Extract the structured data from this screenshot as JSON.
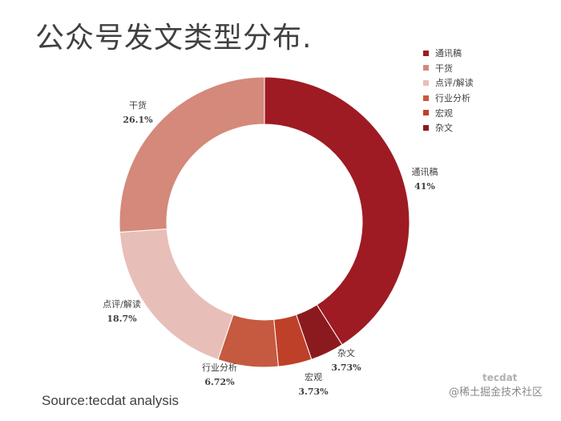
{
  "title": "公众号发文类型分布.",
  "source": "Source:tecdat analysis",
  "watermark": {
    "logo": "tecdat",
    "text": "@稀土掘金技术社区"
  },
  "colors": {
    "通讯稿": "#9e1b23",
    "干货": "#d4897a",
    "点评/解读": "#e8bfb8",
    "行业分析": "#c55a40",
    "宏观": "#bf4028",
    "杂文": "#8b1a1e"
  },
  "chart_data": {
    "type": "pie",
    "donut": true,
    "title": "公众号发文类型分布.",
    "legend_position": "right",
    "slices": [
      {
        "name": "通讯稿",
        "value": 41,
        "label": "41%"
      },
      {
        "name": "杂文",
        "value": 3.73,
        "label": "3.73%"
      },
      {
        "name": "宏观",
        "value": 3.73,
        "label": "3.73%"
      },
      {
        "name": "行业分析",
        "value": 6.72,
        "label": "6.72%"
      },
      {
        "name": "点评/解读",
        "value": 18.7,
        "label": "18.7%"
      },
      {
        "name": "干货",
        "value": 26.1,
        "label": "26.1%"
      }
    ],
    "legend": [
      "通讯稿",
      "干货",
      "点评/解读",
      "行业分析",
      "宏观",
      "杂文"
    ]
  }
}
